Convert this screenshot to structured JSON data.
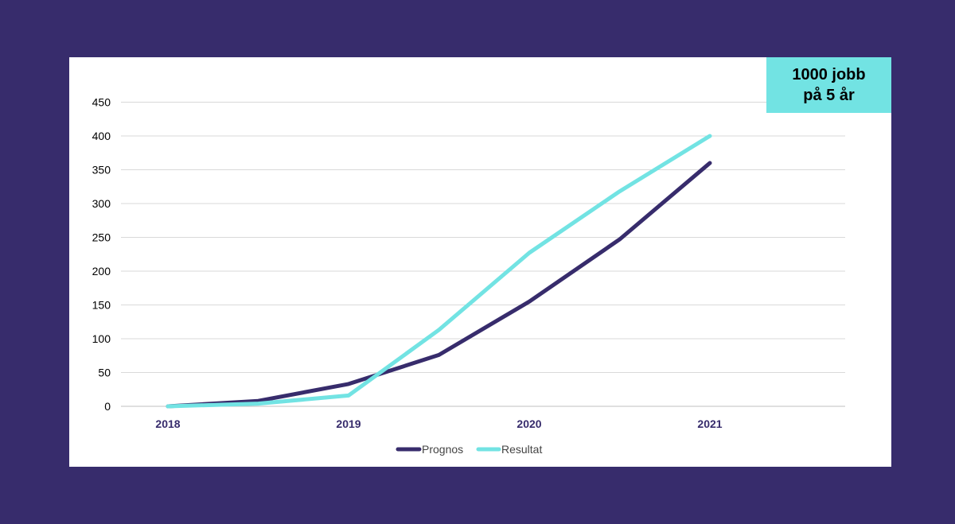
{
  "badge": {
    "line1": "1000 jobb",
    "line2": "på 5 år"
  },
  "colors": {
    "background": "#372c6c",
    "panel": "#ffffff",
    "badge": "#72e3e3",
    "prognos": "#372c6c",
    "resultat": "#72e3e3",
    "grid": "#d9d9d9"
  },
  "chart_data": {
    "type": "line",
    "title": "",
    "xlabel": "",
    "ylabel": "",
    "ylim": [
      0,
      450
    ],
    "yticks": [
      0,
      50,
      100,
      150,
      200,
      250,
      300,
      350,
      400,
      450
    ],
    "xticks": [
      "2018",
      "2019",
      "2020",
      "2021"
    ],
    "x": [
      2018,
      2018.5,
      2019,
      2019.5,
      2020,
      2020.5,
      2021
    ],
    "grid": true,
    "legend_position": "bottom",
    "series": [
      {
        "name": "Prognos",
        "color": "#372c6c",
        "values": [
          0,
          8,
          33,
          76,
          155,
          247,
          360
        ]
      },
      {
        "name": "Resultat",
        "color": "#72e3e3",
        "values": [
          0,
          4,
          16,
          113,
          227,
          318,
          400
        ]
      }
    ]
  }
}
